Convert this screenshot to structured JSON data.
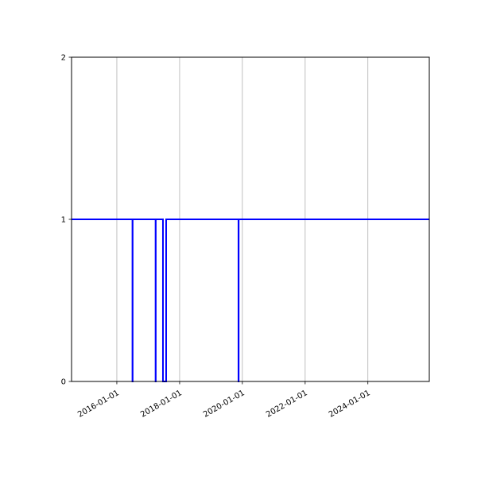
{
  "chart_data": {
    "type": "line",
    "step": "post",
    "title": "",
    "xlabel": "",
    "ylabel": "",
    "xlim": [
      "2014-07-23",
      "2025-12-16"
    ],
    "ylim": [
      0,
      2
    ],
    "x_ticks": [
      "2016-01-01",
      "2018-01-01",
      "2020-01-01",
      "2022-01-01",
      "2024-01-01"
    ],
    "y_ticks": [
      "0",
      "1",
      "2"
    ],
    "grid": "x-axis only",
    "line_color": "#0000ff",
    "series": [
      {
        "points": [
          {
            "x": "2014-07-23",
            "y": 1
          },
          {
            "x": "2016-07-01",
            "y": 0
          },
          {
            "x": "2016-07-03",
            "y": 1
          },
          {
            "x": "2017-03-27",
            "y": 0
          },
          {
            "x": "2017-03-29",
            "y": 1
          },
          {
            "x": "2017-06-21",
            "y": 0
          },
          {
            "x": "2017-07-28",
            "y": 1
          },
          {
            "x": "2019-11-17",
            "y": 0
          },
          {
            "x": "2019-11-19",
            "y": 1
          },
          {
            "x": "2025-12-16",
            "y": 1
          }
        ]
      }
    ]
  }
}
